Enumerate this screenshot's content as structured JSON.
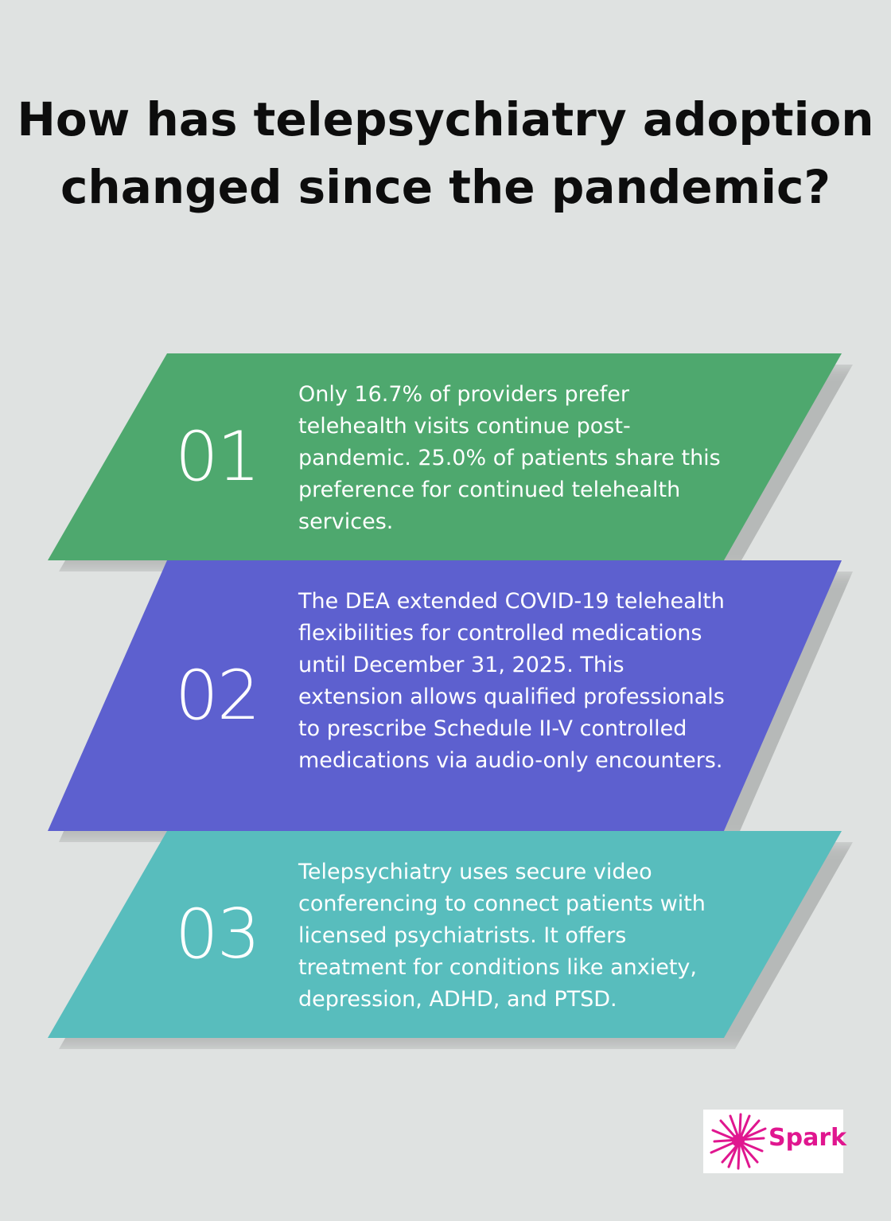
{
  "title": "How has telepsychiatry adoption changed since the pandemic?",
  "steps": [
    {
      "number": "01",
      "color": "#4ea86e",
      "text": "Only 16.7% of providers prefer telehealth visits continue post-pandemic. 25.0% of patients share this preference for continued telehealth services."
    },
    {
      "number": "02",
      "color": "#5d60cf",
      "text": "The DEA extended COVID-19 telehealth flexibilities for controlled medications until December 31, 2025. This extension allows qualified professionals to prescribe Schedule II-V controlled medications via audio-only encounters."
    },
    {
      "number": "03",
      "color": "#58bdbd",
      "text": "Telepsychiatry uses secure video conferencing to connect patients with licensed psychiatrists. It offers treatment for conditions like anxiety, depression, ADHD, and PTSD."
    }
  ],
  "logo": {
    "text": "Spark",
    "color": "#e0168f",
    "icon": "starburst-icon"
  }
}
